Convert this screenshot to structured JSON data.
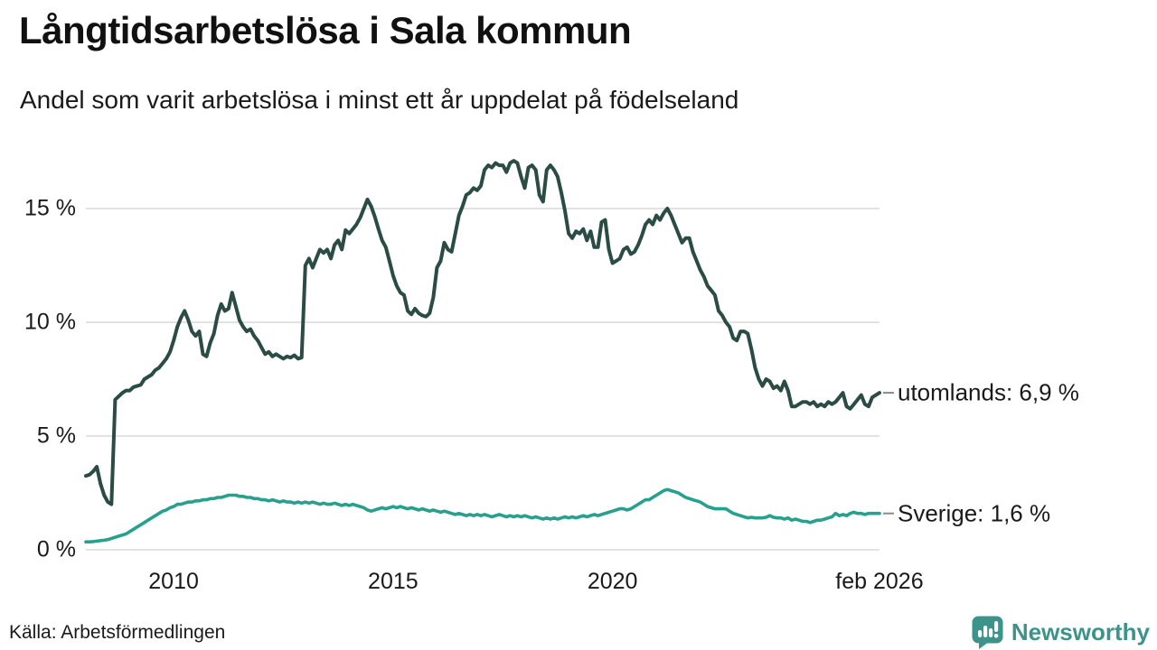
{
  "header": {
    "title": "Långtidsarbetslösa i Sala kommun",
    "subtitle": "Andel som varit arbetslösa i minst ett år uppdelat på födelseland"
  },
  "chart_data": {
    "type": "line",
    "x_unit": "monthly",
    "x_start": "2008-01",
    "x_end": "2026-02",
    "ylim": [
      0,
      17.5
    ],
    "grid": "horizontal",
    "legend_position": "end-of-line-labels",
    "yticks": [
      {
        "value": 0,
        "label": "0 %"
      },
      {
        "value": 5,
        "label": "5 %"
      },
      {
        "value": 10,
        "label": "10 %"
      },
      {
        "value": 15,
        "label": "15 %"
      }
    ],
    "xticks": [
      {
        "t": 2010.0,
        "label": "2010"
      },
      {
        "t": 2015.0,
        "label": "2015"
      },
      {
        "t": 2020.0,
        "label": "2020"
      },
      {
        "t": 2026.083,
        "label": "feb 2026"
      }
    ],
    "series": [
      {
        "name": "utomlands",
        "display_label": "utomlands: 6,9 %",
        "last_value_label": "6,9 %",
        "color": "#2b4c44",
        "values": [
          3.25,
          3.3,
          3.45,
          3.65,
          2.9,
          2.4,
          2.1,
          2.0,
          6.6,
          6.75,
          6.9,
          7.0,
          7.0,
          7.15,
          7.2,
          7.25,
          7.5,
          7.6,
          7.7,
          7.9,
          8.0,
          8.2,
          8.4,
          8.7,
          9.2,
          9.8,
          10.2,
          10.5,
          10.1,
          9.6,
          9.4,
          9.6,
          8.6,
          8.5,
          9.1,
          9.5,
          10.3,
          10.8,
          10.5,
          10.6,
          11.3,
          10.7,
          10.1,
          9.8,
          9.6,
          9.7,
          9.4,
          9.2,
          8.9,
          8.6,
          8.7,
          8.5,
          8.6,
          8.5,
          8.4,
          8.5,
          8.45,
          8.55,
          8.4,
          8.45,
          12.5,
          12.8,
          12.4,
          12.8,
          13.2,
          13.05,
          13.2,
          12.8,
          13.4,
          13.6,
          13.2,
          14.05,
          13.9,
          14.1,
          14.3,
          14.6,
          15.0,
          15.4,
          15.1,
          14.65,
          14.1,
          13.6,
          13.3,
          12.7,
          12.05,
          11.6,
          11.3,
          11.2,
          10.5,
          10.35,
          10.6,
          10.4,
          10.3,
          10.25,
          10.4,
          11.1,
          12.4,
          12.7,
          13.5,
          13.2,
          13.1,
          13.9,
          14.7,
          15.1,
          15.6,
          15.7,
          15.9,
          15.8,
          16.0,
          16.7,
          16.9,
          16.8,
          17.0,
          16.9,
          16.9,
          16.6,
          17.0,
          17.1,
          17.0,
          16.4,
          15.9,
          16.8,
          16.9,
          16.7,
          15.6,
          15.3,
          16.7,
          16.9,
          16.7,
          16.4,
          15.7,
          14.9,
          13.9,
          13.7,
          14.0,
          13.9,
          14.1,
          13.6,
          14.0,
          13.3,
          13.3,
          14.4,
          14.5,
          13.2,
          12.6,
          12.7,
          12.8,
          13.2,
          13.3,
          13.0,
          13.1,
          13.4,
          13.8,
          14.3,
          14.5,
          14.3,
          14.7,
          14.5,
          14.8,
          15.0,
          14.7,
          14.3,
          13.9,
          13.5,
          13.7,
          13.7,
          13.1,
          12.7,
          12.3,
          12.0,
          11.6,
          11.4,
          11.2,
          10.5,
          10.3,
          10.0,
          9.8,
          9.3,
          9.2,
          9.6,
          9.6,
          9.5,
          8.8,
          8.0,
          7.5,
          7.2,
          7.5,
          7.4,
          7.1,
          7.2,
          7.0,
          7.4,
          7.0,
          6.3,
          6.3,
          6.4,
          6.5,
          6.5,
          6.4,
          6.5,
          6.3,
          6.4,
          6.3,
          6.5,
          6.4,
          6.5,
          6.7,
          6.9,
          6.3,
          6.2,
          6.4,
          6.6,
          6.8,
          6.4,
          6.3,
          6.7,
          6.8,
          6.9
        ]
      },
      {
        "name": "Sverige",
        "display_label": "Sverige: 1,6 %",
        "last_value_label": "1,6 %",
        "color": "#27a08e",
        "values": [
          0.35,
          0.35,
          0.36,
          0.38,
          0.4,
          0.42,
          0.45,
          0.5,
          0.55,
          0.6,
          0.65,
          0.7,
          0.8,
          0.9,
          1.0,
          1.1,
          1.2,
          1.3,
          1.4,
          1.5,
          1.6,
          1.7,
          1.75,
          1.85,
          1.9,
          2.0,
          2.0,
          2.05,
          2.1,
          2.1,
          2.15,
          2.15,
          2.2,
          2.2,
          2.25,
          2.25,
          2.3,
          2.3,
          2.35,
          2.4,
          2.4,
          2.4,
          2.35,
          2.35,
          2.3,
          2.3,
          2.25,
          2.25,
          2.2,
          2.2,
          2.15,
          2.2,
          2.15,
          2.1,
          2.15,
          2.1,
          2.1,
          2.05,
          2.1,
          2.05,
          2.1,
          2.05,
          2.1,
          2.05,
          2.0,
          2.05,
          2.0,
          2.0,
          2.05,
          2.0,
          1.95,
          2.0,
          1.95,
          2.0,
          1.95,
          1.9,
          1.85,
          1.75,
          1.7,
          1.75,
          1.8,
          1.85,
          1.8,
          1.85,
          1.9,
          1.85,
          1.9,
          1.85,
          1.8,
          1.85,
          1.8,
          1.75,
          1.8,
          1.75,
          1.7,
          1.75,
          1.7,
          1.65,
          1.7,
          1.65,
          1.6,
          1.55,
          1.6,
          1.55,
          1.5,
          1.55,
          1.5,
          1.55,
          1.5,
          1.55,
          1.5,
          1.45,
          1.5,
          1.55,
          1.5,
          1.45,
          1.5,
          1.45,
          1.5,
          1.45,
          1.5,
          1.45,
          1.4,
          1.45,
          1.4,
          1.35,
          1.4,
          1.35,
          1.4,
          1.35,
          1.4,
          1.45,
          1.4,
          1.45,
          1.4,
          1.45,
          1.5,
          1.45,
          1.5,
          1.55,
          1.5,
          1.55,
          1.6,
          1.65,
          1.7,
          1.75,
          1.8,
          1.8,
          1.75,
          1.8,
          1.9,
          2.0,
          2.1,
          2.2,
          2.2,
          2.3,
          2.4,
          2.5,
          2.6,
          2.65,
          2.6,
          2.55,
          2.5,
          2.4,
          2.3,
          2.25,
          2.2,
          2.15,
          2.1,
          2.0,
          1.9,
          1.85,
          1.8,
          1.8,
          1.8,
          1.8,
          1.7,
          1.6,
          1.55,
          1.5,
          1.45,
          1.4,
          1.43,
          1.4,
          1.4,
          1.4,
          1.43,
          1.5,
          1.43,
          1.4,
          1.4,
          1.35,
          1.4,
          1.3,
          1.35,
          1.3,
          1.25,
          1.25,
          1.2,
          1.25,
          1.3,
          1.3,
          1.35,
          1.4,
          1.45,
          1.6,
          1.5,
          1.55,
          1.5,
          1.6,
          1.65,
          1.6,
          1.6,
          1.55,
          1.6,
          1.6,
          1.6,
          1.6
        ]
      }
    ]
  },
  "footer": {
    "source": "Källa: Arbetsförmedlingen"
  },
  "branding": {
    "name": "Newsworthy",
    "color": "#3b938a"
  },
  "colors": {
    "grid": "#e2e2e2",
    "text": "#1a1a1a",
    "label_dash": "#888888",
    "background": "#ffffff"
  }
}
